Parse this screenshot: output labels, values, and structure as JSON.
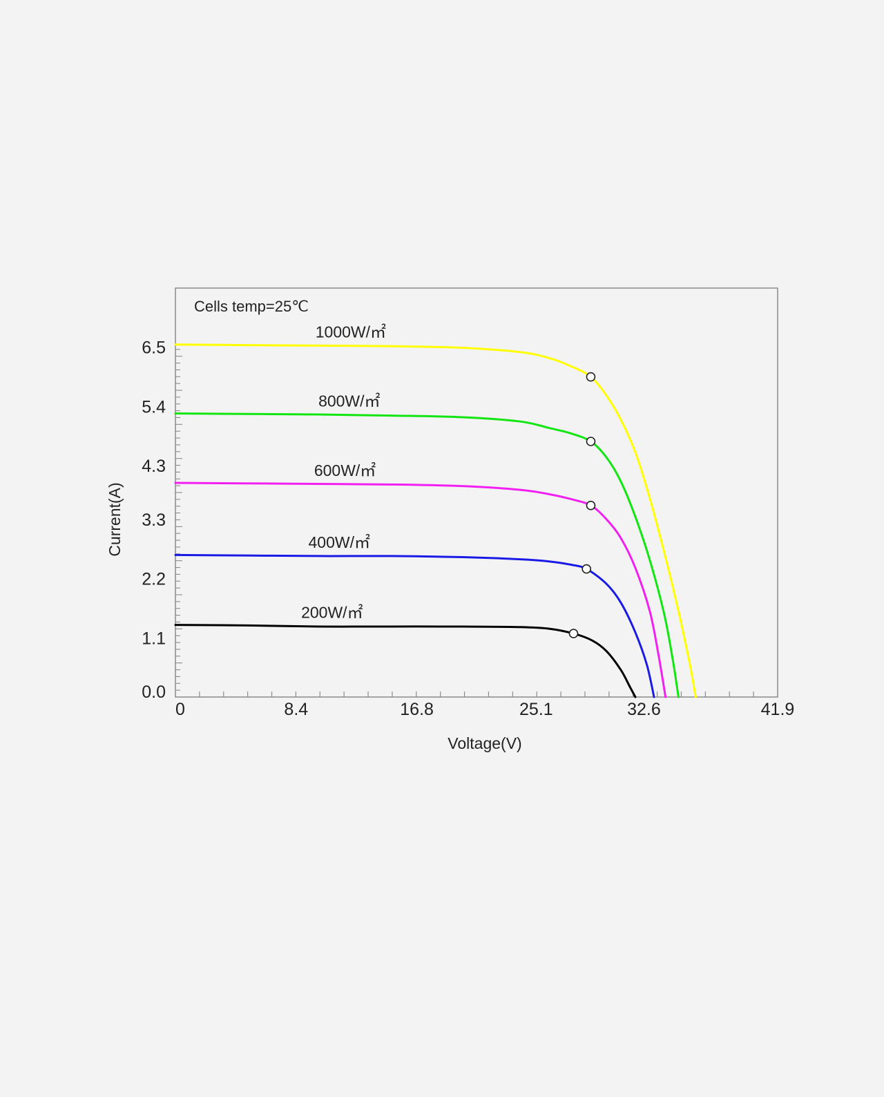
{
  "chart_data": {
    "type": "line",
    "annotation": "Cells temp=25℃",
    "xlabel": "Voltage(V)",
    "ylabel": "Current(A)",
    "xlim": [
      0,
      41.9
    ],
    "ylim": [
      0,
      7.6
    ],
    "xticks": [
      0,
      8.4,
      16.8,
      25.1,
      32.6,
      41.9
    ],
    "xtick_labels": [
      "0",
      "8.4",
      "16.8",
      "25.1",
      "32.6",
      "41.9"
    ],
    "yticks": [
      0.0,
      1.1,
      2.2,
      3.3,
      4.3,
      5.4,
      6.5
    ],
    "ytick_labels": [
      "0.0",
      "1.1",
      "2.2",
      "3.3",
      "4.3",
      "5.4",
      "6.5"
    ],
    "grid": false,
    "legend": "inline labels",
    "series": [
      {
        "name": "1000W/㎡",
        "color": "#ffff00",
        "x": [
          0,
          5,
          10,
          15,
          20,
          24,
          26,
          27.5,
          28.9,
          30,
          31,
          32,
          33,
          34,
          35,
          35.8,
          36.2
        ],
        "y": [
          6.55,
          6.54,
          6.53,
          6.52,
          6.49,
          6.41,
          6.3,
          6.15,
          5.95,
          5.6,
          5.15,
          4.55,
          3.7,
          2.7,
          1.6,
          0.6,
          0.0
        ],
        "mpp": {
          "x": 28.9,
          "y": 5.95
        }
      },
      {
        "name": "800W/㎡",
        "color": "#11e611",
        "x": [
          0,
          5,
          10,
          15,
          20,
          24,
          26,
          27.5,
          28.9,
          30,
          31,
          32,
          33,
          34,
          34.6,
          35.0
        ],
        "y": [
          5.27,
          5.26,
          5.25,
          5.23,
          5.2,
          5.12,
          5.0,
          4.9,
          4.75,
          4.45,
          4.0,
          3.35,
          2.55,
          1.55,
          0.7,
          0.0
        ],
        "mpp": {
          "x": 28.9,
          "y": 4.75
        }
      },
      {
        "name": "600W/㎡",
        "color": "#f21ff2",
        "x": [
          0,
          5,
          10,
          15,
          20,
          24,
          26,
          27.5,
          28.9,
          30,
          31,
          32,
          33,
          33.6,
          34.1
        ],
        "y": [
          3.98,
          3.97,
          3.96,
          3.95,
          3.92,
          3.85,
          3.77,
          3.68,
          3.56,
          3.3,
          2.95,
          2.4,
          1.6,
          0.8,
          0.0
        ],
        "mpp": {
          "x": 28.9,
          "y": 3.56
        }
      },
      {
        "name": "400W/㎡",
        "color": "#1a1ae6",
        "x": [
          0,
          5,
          10,
          15,
          20,
          24,
          26,
          27.5,
          28.6,
          30,
          31,
          32,
          32.8,
          33.3
        ],
        "y": [
          2.64,
          2.63,
          2.62,
          2.62,
          2.6,
          2.56,
          2.52,
          2.46,
          2.38,
          2.1,
          1.75,
          1.2,
          0.6,
          0.0
        ],
        "mpp": {
          "x": 28.6,
          "y": 2.38
        }
      },
      {
        "name": "200W/㎡",
        "color": "#000000",
        "x": [
          0,
          5,
          10,
          15,
          20,
          24,
          26,
          27.7,
          29,
          30,
          31,
          31.6,
          32.0
        ],
        "y": [
          1.34,
          1.33,
          1.31,
          1.31,
          1.31,
          1.3,
          1.27,
          1.18,
          1.05,
          0.85,
          0.5,
          0.2,
          0.0
        ],
        "mpp": {
          "x": 27.7,
          "y": 1.18
        }
      }
    ]
  }
}
